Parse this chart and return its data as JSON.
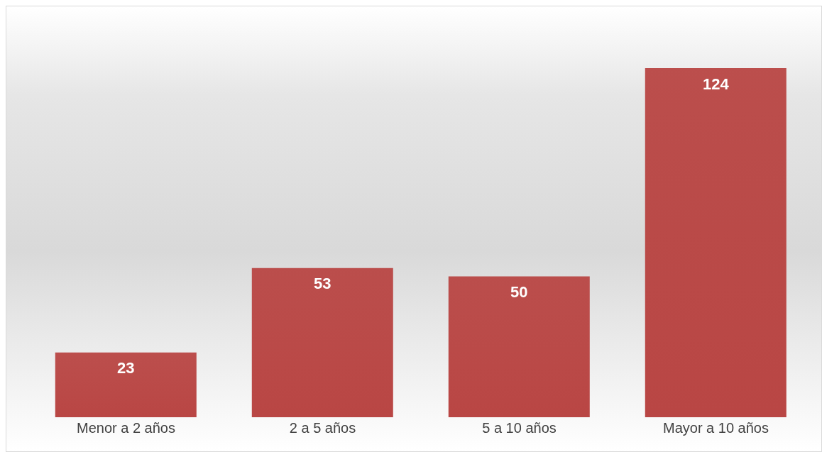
{
  "chart_data": {
    "type": "bar",
    "categories": [
      "Menor a 2 años",
      "2 a 5 años",
      "5 a 10 años",
      "Mayor a 10 años"
    ],
    "values": [
      23,
      53,
      50,
      124
    ],
    "color": "#b94644",
    "data_labels": true
  }
}
